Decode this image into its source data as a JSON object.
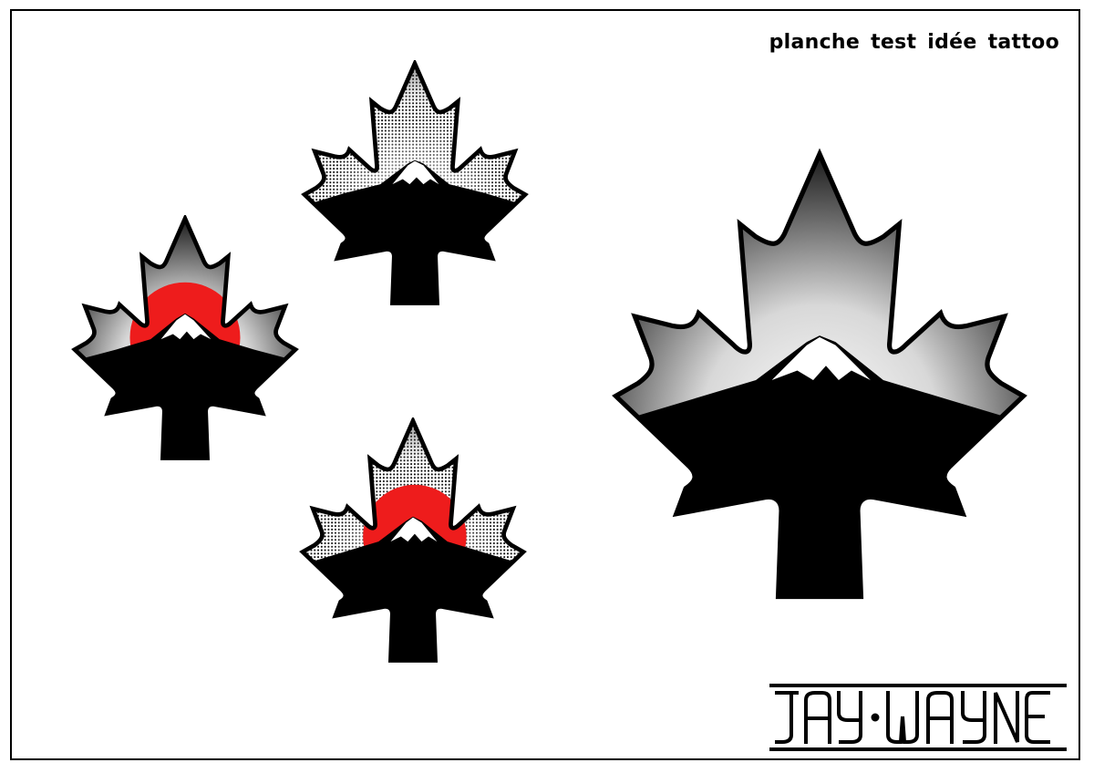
{
  "title": "planche test idée tattoo",
  "signature_text": "JAY WAYNE",
  "colors": {
    "sun": "#ee1c1c",
    "ink": "#000000",
    "paper": "#ffffff"
  },
  "designs": [
    {
      "name": "halftone-leaf-mountain",
      "sun": false,
      "shading": "halftone"
    },
    {
      "name": "gradient-leaf-red-sun-mountain",
      "sun": true,
      "shading": "gradient"
    },
    {
      "name": "halftone-leaf-red-sun-mountain",
      "sun": true,
      "shading": "halftone"
    },
    {
      "name": "large-gradient-leaf-mountain",
      "sun": false,
      "shading": "gradient"
    }
  ]
}
